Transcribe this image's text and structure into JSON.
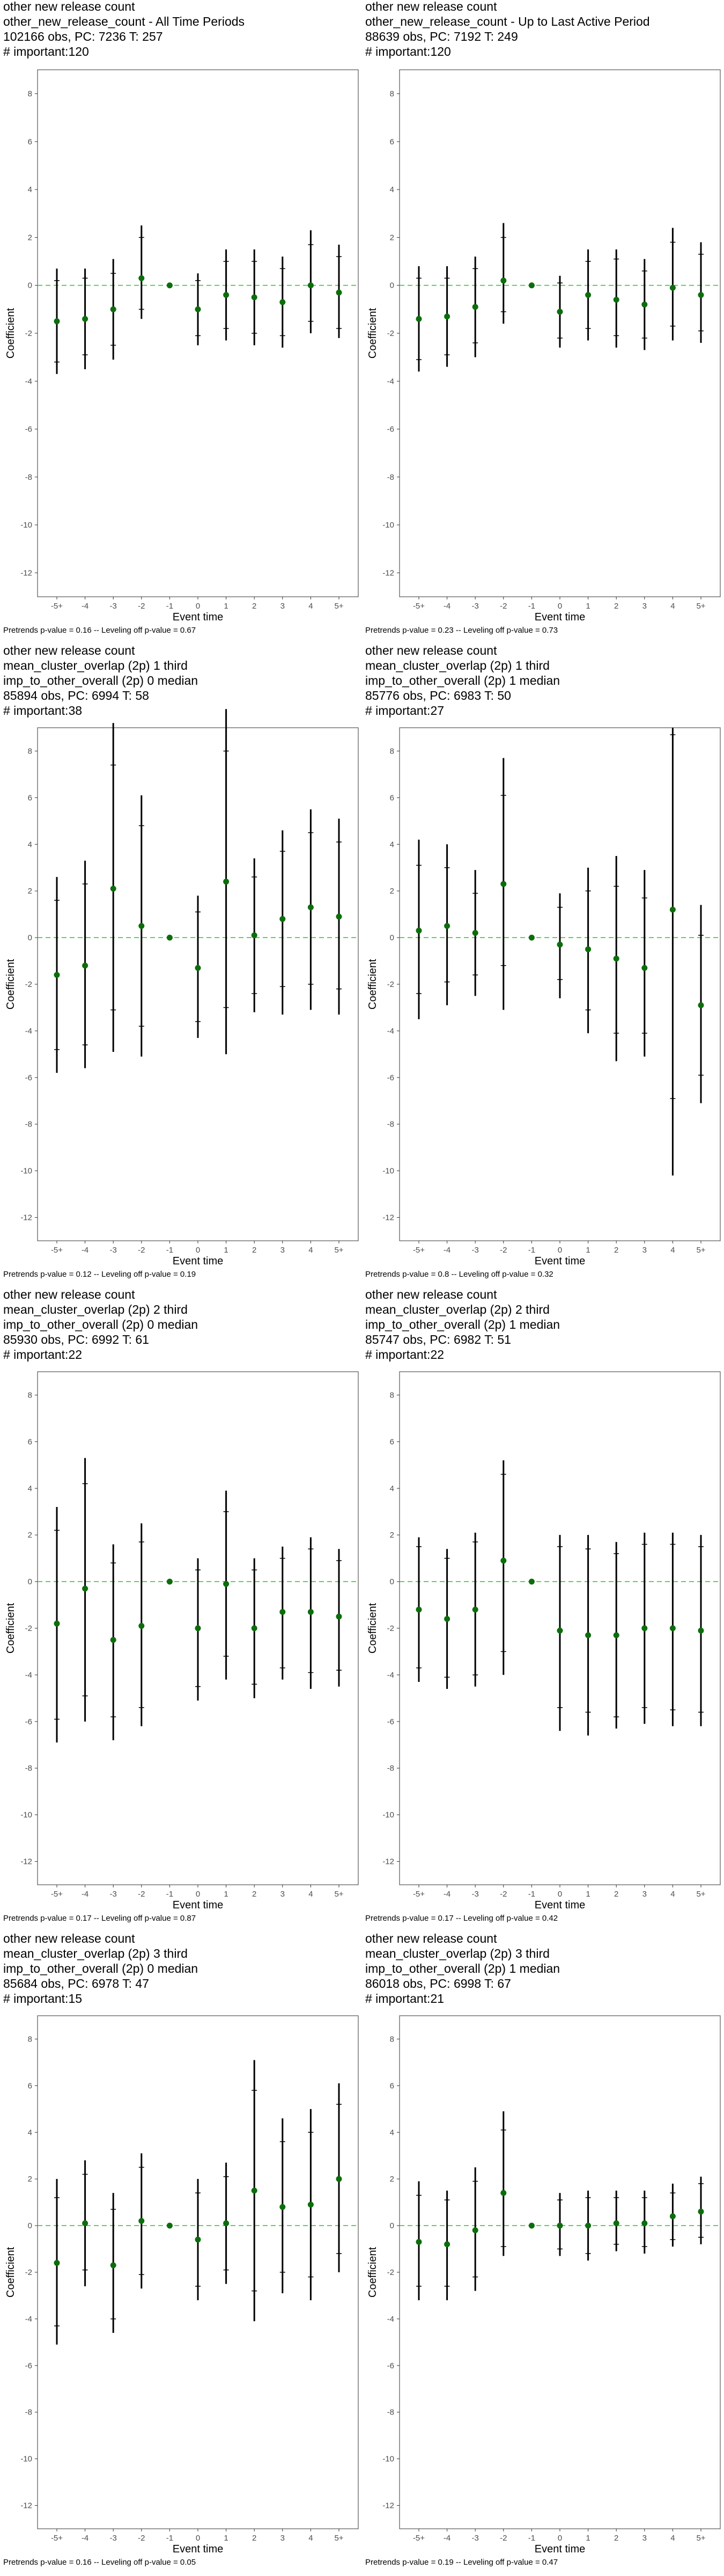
{
  "chart_data": [
    {
      "type": "scatter",
      "title_lines": [
        "other new release count",
        "other_new_release_count - All Time Periods",
        "102166 obs, PC: 7236 T: 257",
        "# important:120"
      ],
      "footnote": "Pretrends p-value = 0.16 -- Leveling off p-value = 0.67",
      "xlabel": "Event time",
      "ylabel": "Coefficient",
      "categories": [
        "-5+",
        "-4",
        "-3",
        "-2",
        "-1",
        "0",
        "1",
        "2",
        "3",
        "4",
        "5+"
      ],
      "ylim": [
        -13,
        9
      ],
      "yticks": [
        -12,
        -10,
        -8,
        -6,
        -4,
        -2,
        0,
        2,
        4,
        6,
        8
      ],
      "values": [
        -1.5,
        -1.4,
        -1.0,
        0.3,
        0.0,
        -1.0,
        -0.4,
        -0.5,
        -0.7,
        0.0,
        -0.3
      ],
      "ci95_low": [
        -3.7,
        -3.5,
        -3.1,
        -1.4,
        0.0,
        -2.5,
        -2.3,
        -2.5,
        -2.6,
        -2.0,
        -2.2
      ],
      "ci95_high": [
        0.7,
        0.7,
        1.1,
        2.5,
        0.0,
        0.5,
        1.5,
        1.5,
        1.2,
        2.3,
        1.7
      ],
      "ci90_low": [
        -3.2,
        -2.9,
        -2.5,
        -1.0,
        0.0,
        -2.1,
        -1.8,
        -2.0,
        -2.1,
        -1.5,
        -1.8
      ],
      "ci90_high": [
        0.2,
        0.3,
        0.5,
        2.0,
        0.0,
        0.2,
        1.0,
        1.0,
        0.7,
        1.7,
        1.2
      ]
    },
    {
      "type": "scatter",
      "title_lines": [
        "other new release count",
        "other_new_release_count - Up to Last Active Period",
        "88639 obs, PC: 7192 T: 249",
        "# important:120"
      ],
      "footnote": "Pretrends p-value = 0.23 -- Leveling off p-value = 0.73",
      "xlabel": "Event time",
      "ylabel": "Coefficient",
      "categories": [
        "-5+",
        "-4",
        "-3",
        "-2",
        "-1",
        "0",
        "1",
        "2",
        "3",
        "4",
        "5+"
      ],
      "ylim": [
        -13,
        9
      ],
      "yticks": [
        -12,
        -10,
        -8,
        -6,
        -4,
        -2,
        0,
        2,
        4,
        6,
        8
      ],
      "values": [
        -1.4,
        -1.3,
        -0.9,
        0.2,
        0.0,
        -1.1,
        -0.4,
        -0.6,
        -0.8,
        -0.1,
        -0.4
      ],
      "ci95_low": [
        -3.6,
        -3.4,
        -3.0,
        -1.6,
        0.0,
        -2.6,
        -2.3,
        -2.6,
        -2.7,
        -2.3,
        -2.4
      ],
      "ci95_high": [
        0.8,
        0.8,
        1.2,
        2.6,
        0.0,
        0.4,
        1.5,
        1.5,
        1.1,
        2.4,
        1.8
      ],
      "ci90_low": [
        -3.1,
        -2.9,
        -2.4,
        -1.1,
        0.0,
        -2.2,
        -1.8,
        -2.1,
        -2.2,
        -1.7,
        -1.9
      ],
      "ci90_high": [
        0.3,
        0.3,
        0.7,
        2.0,
        0.0,
        0.1,
        1.0,
        1.1,
        0.6,
        1.8,
        1.3
      ]
    },
    {
      "type": "scatter",
      "title_lines": [
        "other new release count",
        "mean_cluster_overlap (2p) 1 third",
        "imp_to_other_overall (2p) 0 median",
        "85894 obs, PC: 6994 T: 58",
        "# important:38"
      ],
      "footnote": "Pretrends p-value = 0.12 -- Leveling off p-value = 0.19",
      "xlabel": "Event time",
      "ylabel": "Coefficient",
      "categories": [
        "-5+",
        "-4",
        "-3",
        "-2",
        "-1",
        "0",
        "1",
        "2",
        "3",
        "4",
        "5+"
      ],
      "ylim": [
        -13,
        9
      ],
      "yticks": [
        -12,
        -10,
        -8,
        -6,
        -4,
        -2,
        0,
        2,
        4,
        6,
        8
      ],
      "values": [
        -1.6,
        -1.2,
        2.1,
        0.5,
        0.0,
        -1.3,
        2.4,
        0.1,
        0.8,
        1.3,
        0.9
      ],
      "ci95_low": [
        -5.8,
        -5.6,
        -4.9,
        -5.1,
        0.0,
        -4.3,
        -5.0,
        -3.2,
        -3.3,
        -3.1,
        -3.3
      ],
      "ci95_high": [
        2.6,
        3.3,
        9.2,
        6.1,
        0.0,
        1.8,
        9.8,
        3.4,
        4.6,
        5.5,
        5.1
      ],
      "ci90_low": [
        -4.8,
        -4.6,
        -3.1,
        -3.8,
        0.0,
        -3.6,
        -3.0,
        -2.4,
        -2.1,
        -2.0,
        -2.2
      ],
      "ci90_high": [
        1.6,
        2.3,
        7.4,
        4.8,
        0.0,
        1.1,
        8.0,
        2.6,
        3.7,
        4.5,
        4.1
      ]
    },
    {
      "type": "scatter",
      "title_lines": [
        "other new release count",
        "mean_cluster_overlap (2p) 1 third",
        "imp_to_other_overall (2p) 1 median",
        "85776 obs, PC: 6983 T: 50",
        "# important:27"
      ],
      "footnote": "Pretrends p-value = 0.8 -- Leveling off p-value = 0.32",
      "xlabel": "Event time",
      "ylabel": "Coefficient",
      "categories": [
        "-5+",
        "-4",
        "-3",
        "-2",
        "-1",
        "0",
        "1",
        "2",
        "3",
        "4",
        "5+"
      ],
      "ylim": [
        -13,
        9
      ],
      "yticks": [
        -12,
        -10,
        -8,
        -6,
        -4,
        -2,
        0,
        2,
        4,
        6,
        8
      ],
      "values": [
        0.3,
        0.5,
        0.2,
        2.3,
        0.0,
        -0.3,
        -0.5,
        -0.9,
        -1.3,
        1.2,
        -2.9
      ],
      "ci95_low": [
        -3.5,
        -2.9,
        -2.5,
        -3.1,
        0.0,
        -2.6,
        -4.1,
        -5.3,
        -5.1,
        -10.2,
        -7.1
      ],
      "ci95_high": [
        4.2,
        4.0,
        2.9,
        7.7,
        0.0,
        1.9,
        3.0,
        3.5,
        2.9,
        9.0,
        1.4
      ],
      "ci90_low": [
        -2.4,
        -1.9,
        -1.6,
        -1.2,
        0.0,
        -1.8,
        -3.1,
        -4.1,
        -4.1,
        -6.9,
        -5.9
      ],
      "ci90_high": [
        3.1,
        3.0,
        1.9,
        6.1,
        0.0,
        1.3,
        2.0,
        2.2,
        1.7,
        8.7,
        0.1
      ]
    },
    {
      "type": "scatter",
      "title_lines": [
        "other new release count",
        "mean_cluster_overlap (2p) 2 third",
        "imp_to_other_overall (2p) 0 median",
        "85930 obs, PC: 6992 T: 61",
        "# important:22"
      ],
      "footnote": "Pretrends p-value = 0.17 -- Leveling off p-value = 0.87",
      "xlabel": "Event time",
      "ylabel": "Coefficient",
      "categories": [
        "-5+",
        "-4",
        "-3",
        "-2",
        "-1",
        "0",
        "1",
        "2",
        "3",
        "4",
        "5+"
      ],
      "ylim": [
        -13,
        9
      ],
      "yticks": [
        -12,
        -10,
        -8,
        -6,
        -4,
        -2,
        0,
        2,
        4,
        6,
        8
      ],
      "values": [
        -1.8,
        -0.3,
        -2.5,
        -1.9,
        0.0,
        -2.0,
        -0.1,
        -2.0,
        -1.3,
        -1.3,
        -1.5
      ],
      "ci95_low": [
        -6.9,
        -6.0,
        -6.8,
        -6.2,
        0.0,
        -5.1,
        -4.2,
        -5.0,
        -4.2,
        -4.6,
        -4.5
      ],
      "ci95_high": [
        3.2,
        5.3,
        1.6,
        2.5,
        0.0,
        1.0,
        3.9,
        1.0,
        1.5,
        1.9,
        1.4
      ],
      "ci90_low": [
        -5.9,
        -4.9,
        -5.8,
        -5.4,
        0.0,
        -4.5,
        -3.2,
        -4.4,
        -3.7,
        -3.9,
        -3.8
      ],
      "ci90_high": [
        2.2,
        4.2,
        0.8,
        1.7,
        0.0,
        0.5,
        3.0,
        0.5,
        1.0,
        1.4,
        0.9
      ]
    },
    {
      "type": "scatter",
      "title_lines": [
        "other new release count",
        "mean_cluster_overlap (2p) 2 third",
        "imp_to_other_overall (2p) 1 median",
        "85747 obs, PC: 6982 T: 51",
        "# important:22"
      ],
      "footnote": "Pretrends p-value = 0.17 -- Leveling off p-value = 0.42",
      "xlabel": "Event time",
      "ylabel": "Coefficient",
      "categories": [
        "-5+",
        "-4",
        "-3",
        "-2",
        "-1",
        "0",
        "1",
        "2",
        "3",
        "4",
        "5+"
      ],
      "ylim": [
        -13,
        9
      ],
      "yticks": [
        -12,
        -10,
        -8,
        -6,
        -4,
        -2,
        0,
        2,
        4,
        6,
        8
      ],
      "values": [
        -1.2,
        -1.6,
        -1.2,
        0.9,
        0.0,
        -2.1,
        -2.3,
        -2.3,
        -2.0,
        -2.0,
        -2.1
      ],
      "ci95_low": [
        -4.3,
        -4.6,
        -4.5,
        -4.0,
        0.0,
        -6.4,
        -6.6,
        -6.3,
        -6.1,
        -6.2,
        -6.2
      ],
      "ci95_high": [
        1.9,
        1.4,
        2.1,
        5.2,
        0.0,
        2.0,
        2.0,
        1.7,
        2.1,
        2.1,
        2.0
      ],
      "ci90_low": [
        -3.7,
        -4.1,
        -4.0,
        -3.0,
        0.0,
        -5.4,
        -5.6,
        -5.8,
        -5.4,
        -5.5,
        -5.6
      ],
      "ci90_high": [
        1.5,
        1.0,
        1.7,
        4.6,
        0.0,
        1.5,
        1.4,
        1.2,
        1.6,
        1.6,
        1.5
      ]
    },
    {
      "type": "scatter",
      "title_lines": [
        "other new release count",
        "mean_cluster_overlap (2p) 3 third",
        "imp_to_other_overall (2p) 0 median",
        "85684 obs, PC: 6978 T: 47",
        "# important:15"
      ],
      "footnote": "Pretrends p-value = 0.16 -- Leveling off p-value = 0.05",
      "xlabel": "Event time",
      "ylabel": "Coefficient",
      "categories": [
        "-5+",
        "-4",
        "-3",
        "-2",
        "-1",
        "0",
        "1",
        "2",
        "3",
        "4",
        "5+"
      ],
      "ylim": [
        -13,
        9
      ],
      "yticks": [
        -12,
        -10,
        -8,
        -6,
        -4,
        -2,
        0,
        2,
        4,
        6,
        8
      ],
      "values": [
        -1.6,
        0.1,
        -1.7,
        0.2,
        0.0,
        -0.6,
        0.1,
        1.5,
        0.8,
        0.9,
        2.0
      ],
      "ci95_low": [
        -5.1,
        -2.6,
        -4.6,
        -2.7,
        0.0,
        -3.2,
        -2.5,
        -4.1,
        -2.9,
        -3.2,
        -2.0
      ],
      "ci95_high": [
        2.0,
        2.8,
        1.4,
        3.1,
        0.0,
        2.0,
        2.7,
        7.1,
        4.6,
        5.0,
        6.1
      ],
      "ci90_low": [
        -4.3,
        -1.9,
        -4.0,
        -2.1,
        0.0,
        -2.6,
        -1.9,
        -2.8,
        -2.0,
        -2.2,
        -1.2
      ],
      "ci90_high": [
        1.2,
        2.2,
        0.7,
        2.5,
        0.0,
        1.4,
        2.1,
        5.8,
        3.6,
        4.0,
        5.2
      ]
    },
    {
      "type": "scatter",
      "title_lines": [
        "other new release count",
        "mean_cluster_overlap (2p) 3 third",
        "imp_to_other_overall (2p) 1 median",
        "86018 obs, PC: 6998 T: 67",
        "# important:21"
      ],
      "footnote": "Pretrends p-value = 0.19 -- Leveling off p-value = 0.47",
      "xlabel": "Event time",
      "ylabel": "Coefficient",
      "categories": [
        "-5+",
        "-4",
        "-3",
        "-2",
        "-1",
        "0",
        "1",
        "2",
        "3",
        "4",
        "5+"
      ],
      "ylim": [
        -13,
        9
      ],
      "yticks": [
        -12,
        -10,
        -8,
        -6,
        -4,
        -2,
        0,
        2,
        4,
        6,
        8
      ],
      "values": [
        -0.7,
        -0.8,
        -0.2,
        1.4,
        0.0,
        0.0,
        0.0,
        0.1,
        0.1,
        0.4,
        0.6
      ],
      "ci95_low": [
        -3.2,
        -3.2,
        -2.8,
        -1.3,
        0.0,
        -1.3,
        -1.5,
        -1.1,
        -1.2,
        -0.9,
        -0.8
      ],
      "ci95_high": [
        1.9,
        1.5,
        2.5,
        4.9,
        0.0,
        1.4,
        1.5,
        1.5,
        1.5,
        1.8,
        2.1
      ],
      "ci90_low": [
        -2.6,
        -2.6,
        -2.2,
        -0.9,
        0.0,
        -1.0,
        -1.2,
        -0.8,
        -0.9,
        -0.6,
        -0.5
      ],
      "ci90_high": [
        1.3,
        1.1,
        1.9,
        4.1,
        0.0,
        1.1,
        1.2,
        1.2,
        1.2,
        1.4,
        1.8
      ]
    }
  ]
}
